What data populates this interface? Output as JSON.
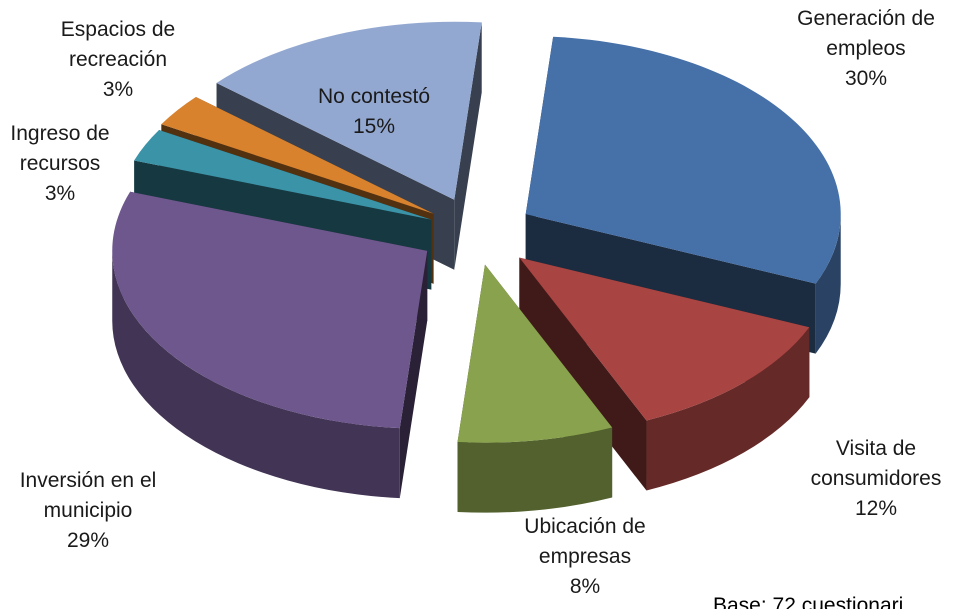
{
  "chart_data": {
    "type": "pie",
    "style": "3d-exploded",
    "legend": "none",
    "slices": [
      {
        "label_lines": [
          "Generación de",
          "empleos"
        ],
        "pct_label": "30%",
        "value": 30,
        "color": "#4670A8"
      },
      {
        "label_lines": [
          "Visita de",
          "consumidores"
        ],
        "pct_label": "12%",
        "value": 12,
        "color": "#A84442"
      },
      {
        "label_lines": [
          "Ubicación de",
          "empresas"
        ],
        "pct_label": "8%",
        "value": 8,
        "color": "#89A24D"
      },
      {
        "label_lines": [
          "Inversión en el",
          "municipio"
        ],
        "pct_label": "29%",
        "value": 29,
        "color": "#6E578D"
      },
      {
        "label_lines": [
          "Ingreso de",
          "recursos"
        ],
        "pct_label": "3%",
        "value": 3,
        "color": "#3B93A8"
      },
      {
        "label_lines": [
          "Espacios de",
          "recreación"
        ],
        "pct_label": "3%",
        "value": 3,
        "color": "#D9822E"
      },
      {
        "label_lines": [
          "No contestó"
        ],
        "pct_label": "15%",
        "value": 15,
        "color": "#93A8D1"
      }
    ],
    "note": "Base: 72 cuestionari"
  }
}
